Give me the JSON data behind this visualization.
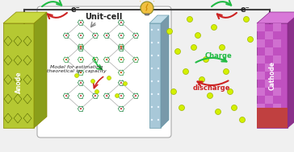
{
  "bg_color": "#f0f0f0",
  "white_box_color": "#ffffff",
  "anode_color": "#b5c832",
  "anode_dark": "#8a9e1a",
  "cathode_color": "#c050c0",
  "cathode_dark": "#8a308a",
  "separator_color": "#a8c8d8",
  "separator_dark": "#7899aa",
  "ion_color": "#d4f000",
  "ion_edge": "#a0b800",
  "wire_color": "#404040",
  "arrow_green": "#22bb44",
  "arrow_red": "#cc2222",
  "title": "Unit-cell",
  "model_text": "Model for estimating\ntheoretical sp. capacity",
  "anode_label": "Anode",
  "cathode_label": "Cathode",
  "charge_label": "Charge",
  "discharge_label": "discharge",
  "electron_label": "e⁻",
  "bulb_color": "#f0c040",
  "bulb_outline": "#888820"
}
